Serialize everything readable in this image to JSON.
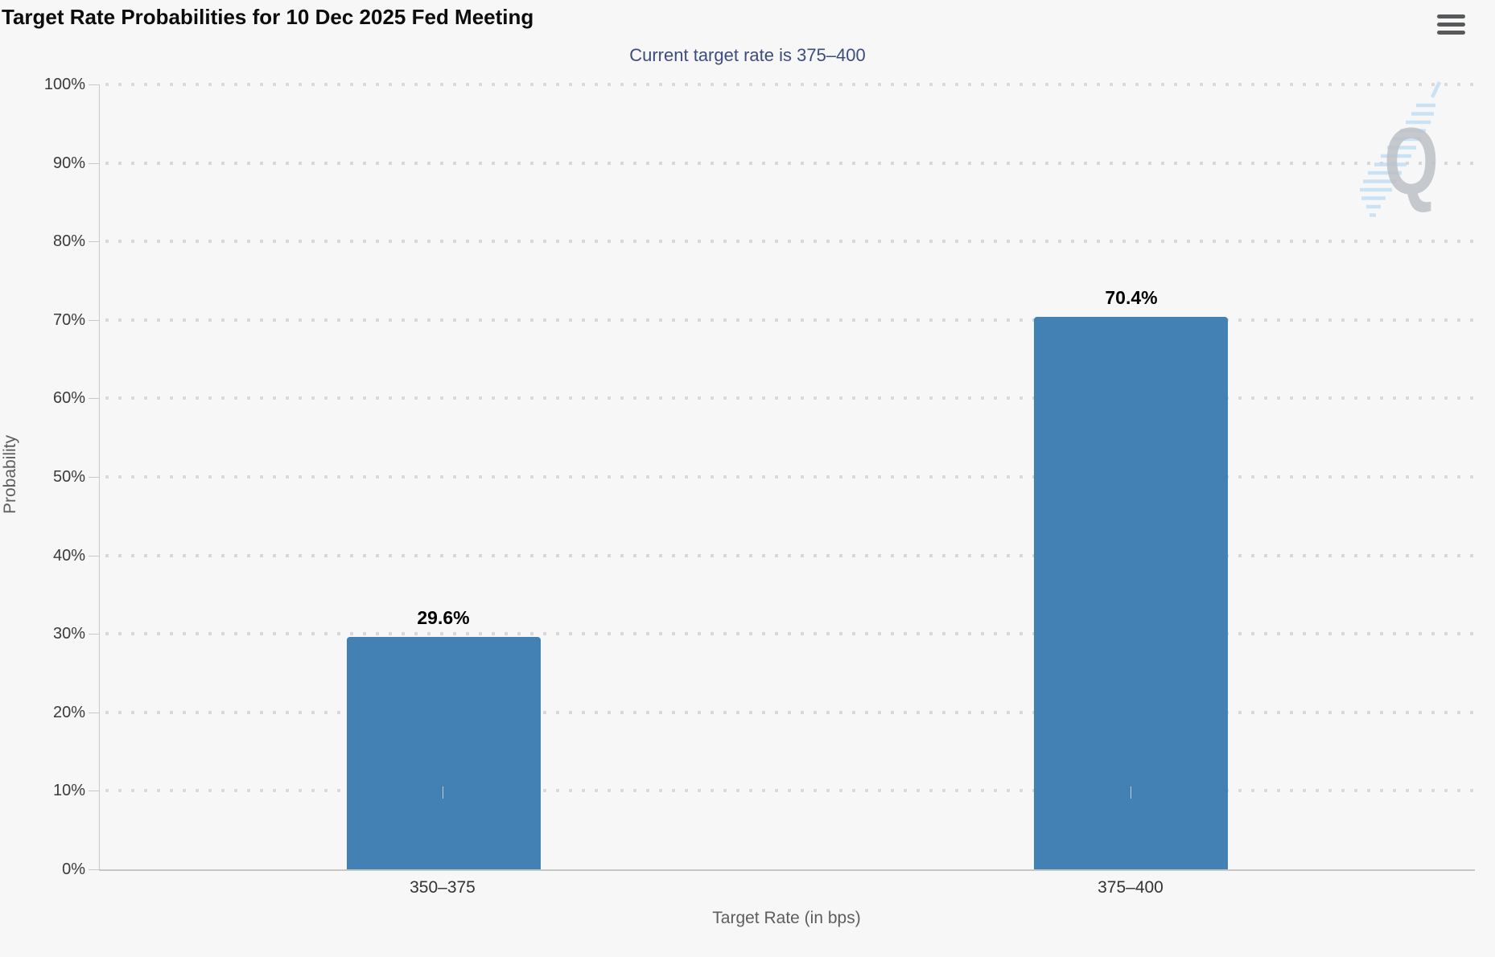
{
  "header": {
    "title": "Target Rate Probabilities for 10 Dec 2025 Fed Meeting",
    "menu_icon": "hamburger-icon"
  },
  "chart_data": {
    "type": "bar",
    "title": "Target Rate Probabilities for 10 Dec 2025 Fed Meeting",
    "subtitle": "Current target rate is 375–400",
    "categories": [
      "350–375",
      "375–400"
    ],
    "values": [
      29.6,
      70.4
    ],
    "value_labels": [
      "29.6%",
      "70.4%"
    ],
    "xlabel": "Target Rate (in bps)",
    "ylabel": "Probability",
    "ylim": [
      0,
      100
    ],
    "ytick_labels": [
      "0%",
      "10%",
      "20%",
      "30%",
      "40%",
      "50%",
      "60%",
      "70%",
      "80%",
      "90%",
      "100%"
    ],
    "grid": "dotted-horizontal",
    "legend": "none",
    "colors": {
      "bar": "#4381b5",
      "subtitle_text": "#3e4d7c",
      "grid_dots": "#d9d9d9",
      "axis_line": "#c6c6c6",
      "background": "#f7f7f7",
      "watermark_stripes": "#bcdcf5",
      "watermark_letter": "#bdc0c5"
    },
    "watermark_letter": "Q"
  }
}
